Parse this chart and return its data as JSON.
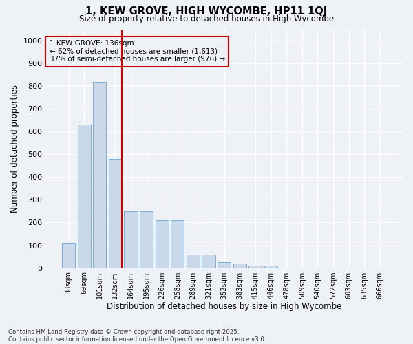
{
  "title1": "1, KEW GROVE, HIGH WYCOMBE, HP11 1QJ",
  "title2": "Size of property relative to detached houses in High Wycombe",
  "xlabel": "Distribution of detached houses by size in High Wycombe",
  "ylabel": "Number of detached properties",
  "categories": [
    "38sqm",
    "69sqm",
    "101sqm",
    "132sqm",
    "164sqm",
    "195sqm",
    "226sqm",
    "258sqm",
    "289sqm",
    "321sqm",
    "352sqm",
    "383sqm",
    "415sqm",
    "446sqm",
    "478sqm",
    "509sqm",
    "540sqm",
    "572sqm",
    "603sqm",
    "635sqm",
    "666sqm"
  ],
  "values": [
    110,
    630,
    820,
    480,
    250,
    250,
    210,
    210,
    60,
    60,
    25,
    20,
    10,
    10,
    0,
    0,
    0,
    0,
    0,
    0,
    0
  ],
  "bar_color": "#c9d9ea",
  "bar_edge_color": "#7aadd4",
  "vline_color": "#cc0000",
  "annotation_text": "1 KEW GROVE: 136sqm\n← 62% of detached houses are smaller (1,613)\n37% of semi-detached houses are larger (976) →",
  "ylim": [
    0,
    1050
  ],
  "yticks": [
    0,
    100,
    200,
    300,
    400,
    500,
    600,
    700,
    800,
    900,
    1000
  ],
  "bg_color": "#eef2f7",
  "grid_color": "#ffffff",
  "footnote": "Contains HM Land Registry data © Crown copyright and database right 2025.\nContains public sector information licensed under the Open Government Licence v3.0."
}
